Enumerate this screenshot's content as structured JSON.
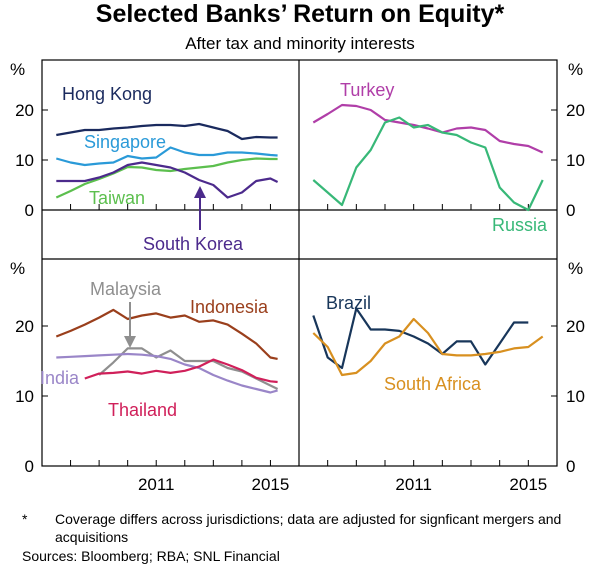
{
  "title": "Selected Banks’ Return on Equity*",
  "subtitle": "After tax and minority interests",
  "footnote_mark": "*",
  "footnote": "Coverage differs across jurisdictions; data are adjusted for signficant mergers and acquisitions",
  "sources": "Sources:  Bloomberg; RBA; SNL Financial",
  "chart_data": [
    {
      "type": "line",
      "panel": "top-left",
      "ylabel": "%",
      "ylim": [
        0,
        30
      ],
      "yticks": [
        0,
        10,
        20
      ],
      "xlim": [
        2007,
        2016
      ],
      "xticks": [
        2011,
        2015
      ],
      "series": [
        {
          "name": "Hong Kong",
          "color": "#1a2a5e",
          "x": [
            2007.5,
            2008,
            2008.5,
            2009,
            2009.5,
            2010,
            2010.5,
            2011,
            2011.5,
            2012,
            2012.5,
            2013,
            2013.5,
            2014,
            2014.5,
            2015,
            2015.25
          ],
          "y": [
            15,
            15.5,
            16,
            16,
            16.3,
            16.5,
            16.8,
            17,
            17,
            16.8,
            17.2,
            16.5,
            15.8,
            14.2,
            14.6,
            14.5,
            14.5
          ]
        },
        {
          "name": "Singapore",
          "color": "#2a9ad8",
          "x": [
            2007.5,
            2008,
            2008.5,
            2009,
            2009.5,
            2010,
            2010.5,
            2011,
            2011.5,
            2012,
            2012.5,
            2013,
            2013.5,
            2014,
            2014.5,
            2015,
            2015.25
          ],
          "y": [
            10.3,
            9.5,
            9,
            9.3,
            9.5,
            10.8,
            10.3,
            10.5,
            12.5,
            11.5,
            11,
            11,
            11.5,
            11.5,
            11.3,
            11,
            10.9
          ]
        },
        {
          "name": "Taiwan",
          "color": "#5cbf4e",
          "x": [
            2007.5,
            2008,
            2008.5,
            2009,
            2009.5,
            2010,
            2010.5,
            2011,
            2011.5,
            2012,
            2012.5,
            2013,
            2013.5,
            2014,
            2014.5,
            2015,
            2015.25
          ],
          "y": [
            2.5,
            3.8,
            5.2,
            6.2,
            7.3,
            8.6,
            8.5,
            8,
            7.8,
            8.2,
            8.5,
            8.8,
            9.5,
            10,
            10.3,
            10.2,
            10.2
          ]
        },
        {
          "name": "South Korea",
          "color": "#4c2a8c",
          "x": [
            2007.5,
            2008,
            2008.5,
            2009,
            2009.5,
            2010,
            2010.5,
            2011,
            2011.5,
            2012,
            2012.5,
            2013,
            2013.5,
            2014,
            2014.5,
            2015,
            2015.25
          ],
          "y": [
            5.8,
            5.8,
            5.8,
            6.5,
            7.5,
            9,
            9.5,
            9,
            8.5,
            7.5,
            6,
            5,
            2.5,
            3.5,
            5.8,
            6.3,
            5.6
          ]
        }
      ],
      "annotations": [
        "Hong Kong",
        "Singapore",
        "Taiwan",
        "South Korea"
      ]
    },
    {
      "type": "line",
      "panel": "top-right",
      "ylabel": "%",
      "ylim": [
        0,
        30
      ],
      "yticks": [
        0,
        10,
        20
      ],
      "xlim": [
        2007,
        2016
      ],
      "xticks": [
        2011,
        2015
      ],
      "series": [
        {
          "name": "Turkey",
          "color": "#b03ea8",
          "x": [
            2007.5,
            2008,
            2008.5,
            2009,
            2009.5,
            2010,
            2010.5,
            2011,
            2011.5,
            2012,
            2012.5,
            2013,
            2013.5,
            2014,
            2014.5,
            2015,
            2015.5
          ],
          "y": [
            17.5,
            19.2,
            21,
            20.8,
            20,
            18,
            17.5,
            17,
            16.3,
            15.5,
            16.3,
            16.5,
            16,
            13.8,
            13.2,
            12.8,
            11.5
          ]
        },
        {
          "name": "Russia",
          "color": "#38b878",
          "x": [
            2007.5,
            2008,
            2008.5,
            2009,
            2009.5,
            2010,
            2010.5,
            2011,
            2011.5,
            2012,
            2012.5,
            2013,
            2013.5,
            2014,
            2014.5,
            2015,
            2015.5
          ],
          "y": [
            6,
            3.5,
            1,
            8.5,
            12,
            17.5,
            18.5,
            16.5,
            17,
            15.5,
            15,
            13.5,
            12.5,
            4.5,
            1.5,
            0,
            6
          ]
        }
      ],
      "annotations": [
        "Turkey",
        "Russia"
      ]
    },
    {
      "type": "line",
      "panel": "bottom-left",
      "ylabel": "%",
      "ylim": [
        0,
        30
      ],
      "yticks": [
        0,
        10,
        20
      ],
      "xlim": [
        2007,
        2016
      ],
      "xticks": [
        2011,
        2015
      ],
      "series": [
        {
          "name": "Indonesia",
          "color": "#9a3f1c",
          "x": [
            2007.5,
            2008,
            2008.5,
            2009,
            2009.5,
            2010,
            2010.5,
            2011,
            2011.5,
            2012,
            2012.5,
            2013,
            2013.5,
            2014,
            2014.5,
            2015,
            2015.25
          ],
          "y": [
            18.5,
            19.3,
            20.2,
            21.2,
            22.3,
            21,
            21.5,
            21.8,
            21.2,
            21.5,
            20.6,
            20.8,
            20.2,
            18.9,
            17.5,
            15.5,
            15.3
          ]
        },
        {
          "name": "Malaysia",
          "color": "#8f8f8f",
          "x": [
            2009,
            2009.5,
            2010,
            2010.5,
            2011,
            2011.5,
            2012,
            2012.5,
            2013,
            2013.5,
            2014,
            2014.5,
            2015,
            2015.25
          ],
          "y": [
            13,
            14.8,
            16.8,
            16.8,
            15.5,
            16.5,
            15,
            15,
            15,
            14,
            13.5,
            12.5,
            11.5,
            11
          ]
        },
        {
          "name": "India",
          "color": "#9a86c8",
          "x": [
            2007.5,
            2008,
            2008.5,
            2009,
            2009.5,
            2010,
            2010.5,
            2011,
            2011.5,
            2012,
            2012.5,
            2013,
            2013.5,
            2014,
            2014.5,
            2015,
            2015.25
          ],
          "y": [
            15.5,
            15.6,
            15.7,
            15.8,
            15.9,
            16,
            15.9,
            15.7,
            15.3,
            14.5,
            14,
            13,
            12.2,
            11.5,
            11,
            10.5,
            10.8
          ]
        },
        {
          "name": "Thailand",
          "color": "#d0205a",
          "x": [
            2008.5,
            2009,
            2009.5,
            2010,
            2010.5,
            2011,
            2011.5,
            2012,
            2012.5,
            2013,
            2013.5,
            2014,
            2014.5,
            2015,
            2015.25
          ],
          "y": [
            12.5,
            13.2,
            13.3,
            13.5,
            13.2,
            13.6,
            13.3,
            13.6,
            14.2,
            15.2,
            14.5,
            13.7,
            12.6,
            12.1,
            12
          ]
        }
      ],
      "annotations": [
        "Malaysia",
        "Indonesia",
        "India",
        "Thailand"
      ]
    },
    {
      "type": "line",
      "panel": "bottom-right",
      "ylabel": "%",
      "ylim": [
        0,
        30
      ],
      "yticks": [
        0,
        10,
        20
      ],
      "xlim": [
        2007,
        2016
      ],
      "xticks": [
        2011,
        2015
      ],
      "series": [
        {
          "name": "Brazil",
          "color": "#18365a",
          "x": [
            2007.5,
            2008,
            2008.5,
            2009,
            2009.5,
            2010,
            2010.5,
            2011,
            2011.5,
            2012,
            2012.5,
            2013,
            2013.5,
            2014,
            2014.5,
            2015
          ],
          "y": [
            21.5,
            15.5,
            14,
            22.5,
            19.5,
            19.5,
            19.3,
            18.5,
            17.5,
            16,
            17.8,
            17.8,
            14.5,
            17.5,
            20.5,
            20.5
          ]
        },
        {
          "name": "South Africa",
          "color": "#d89020",
          "x": [
            2007.5,
            2008,
            2008.5,
            2009,
            2009.5,
            2010,
            2010.5,
            2011,
            2011.5,
            2012,
            2012.5,
            2013,
            2013.5,
            2014,
            2014.5,
            2015,
            2015.5
          ],
          "y": [
            19,
            17,
            13,
            13.3,
            15,
            17.5,
            18.5,
            21,
            19,
            16,
            15.8,
            15.8,
            16,
            16.3,
            16.8,
            17,
            18.5
          ]
        }
      ],
      "annotations": [
        "Brazil",
        "South Africa"
      ]
    }
  ],
  "x_tick_labels": [
    "2011",
    "2015"
  ],
  "y_tick_labels": [
    "0",
    "10",
    "20"
  ],
  "percent_label": "%"
}
